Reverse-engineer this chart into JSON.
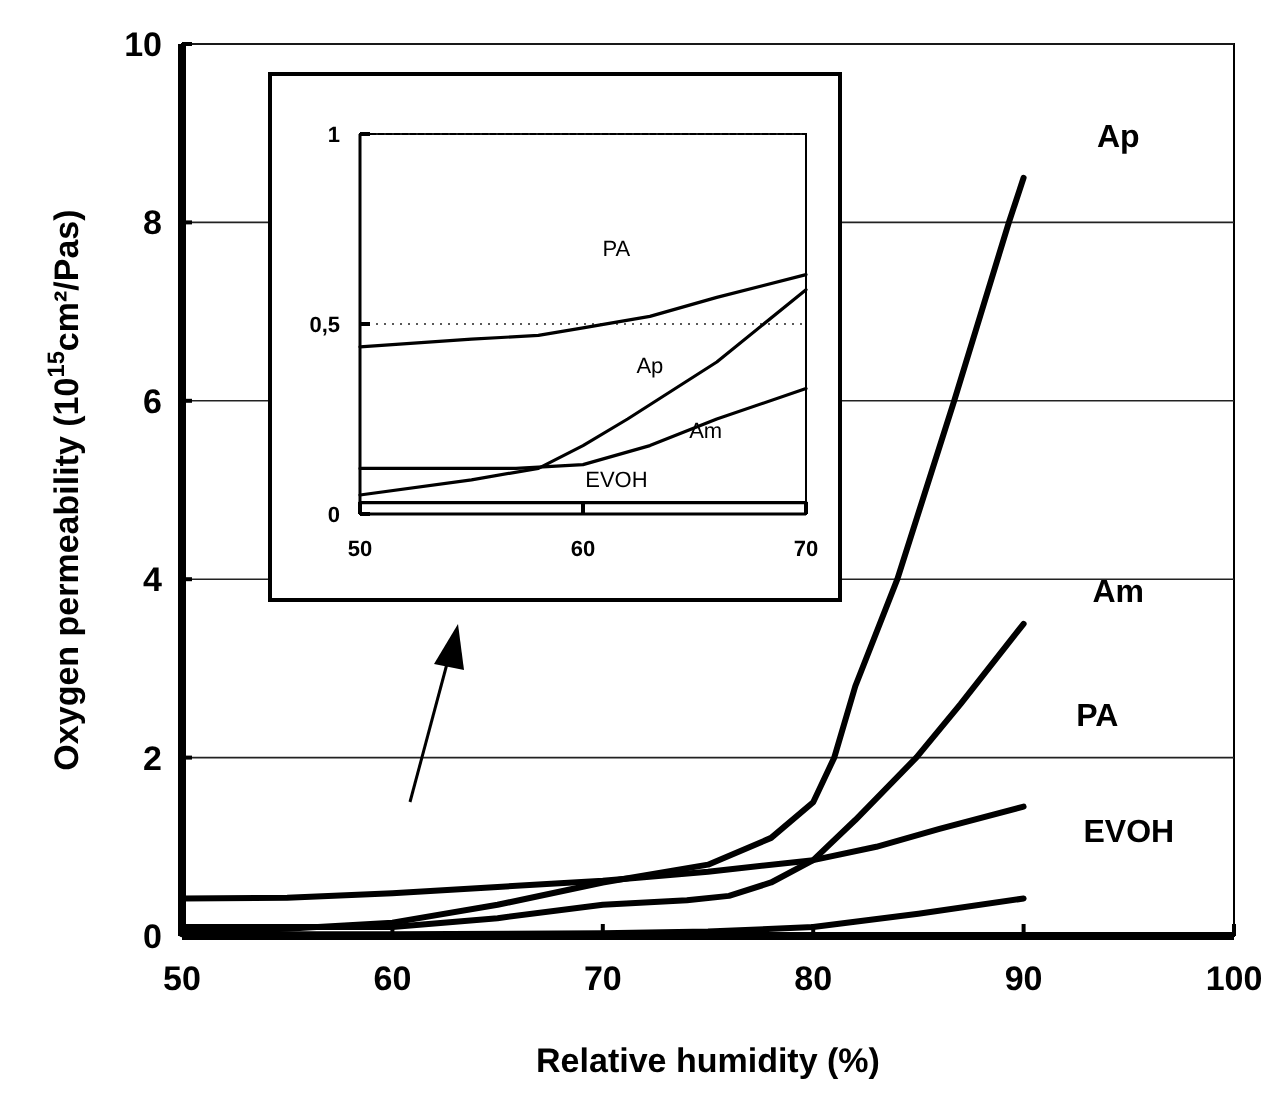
{
  "chart_data": [
    {
      "type": "line",
      "xlabel": "Relative humidity (%)",
      "ylabel": "Oxygen permeability (10$^{15}$cm²/Pas)",
      "xlim": [
        50,
        100
      ],
      "xticks": [
        50,
        60,
        70,
        80,
        90,
        100
      ],
      "ylim": [
        0,
        10
      ],
      "yticks": [
        0,
        2,
        4,
        6,
        8,
        10
      ],
      "grid": "y",
      "marker": "none",
      "line_style": "solid",
      "series": [
        {
          "name": "Ap",
          "color": "#000000",
          "x": [
            50,
            55,
            60,
            65,
            70,
            75,
            78,
            80,
            81,
            82,
            84,
            86.7,
            89.3,
            90
          ],
          "values": [
            0.05,
            0.08,
            0.15,
            0.35,
            0.6,
            0.8,
            1.1,
            1.5,
            2.0,
            2.8,
            4.0,
            6.0,
            8.0,
            8.5
          ]
        },
        {
          "name": "Am",
          "color": "#000000",
          "x": [
            50,
            55,
            60,
            65,
            70,
            74,
            76,
            78,
            80,
            82,
            84.9,
            87,
            90
          ],
          "values": [
            0.1,
            0.1,
            0.1,
            0.2,
            0.35,
            0.4,
            0.45,
            0.6,
            0.85,
            1.3,
            2.0,
            2.6,
            3.5
          ]
        },
        {
          "name": "PA",
          "color": "#000000",
          "x": [
            50,
            55,
            60,
            65,
            70,
            75,
            80,
            83,
            86,
            90
          ],
          "values": [
            0.42,
            0.43,
            0.48,
            0.55,
            0.62,
            0.72,
            0.85,
            1.0,
            1.2,
            1.45
          ]
        },
        {
          "name": "EVOH",
          "color": "#000000",
          "x": [
            50,
            60,
            70,
            75,
            80,
            85,
            90
          ],
          "values": [
            0.02,
            0.02,
            0.03,
            0.05,
            0.1,
            0.25,
            0.42
          ]
        }
      ]
    },
    {
      "type": "line",
      "xlim": [
        50,
        70
      ],
      "xticks": [
        50,
        60,
        70
      ],
      "ylim": [
        0,
        1
      ],
      "yticks": [
        0,
        {
          "value": 0.5,
          "label": "0,5"
        },
        1
      ],
      "grid": "y",
      "marker": "none",
      "line_style": "solid",
      "series": [
        {
          "name": "PA",
          "color": "#000000",
          "x": [
            50,
            55,
            58,
            60,
            63,
            66,
            70
          ],
          "values": [
            0.44,
            0.46,
            0.47,
            0.49,
            0.52,
            0.57,
            0.63
          ]
        },
        {
          "name": "Ap",
          "color": "#000000",
          "x": [
            50,
            55,
            58,
            60,
            62,
            66,
            70
          ],
          "values": [
            0.05,
            0.09,
            0.12,
            0.18,
            0.25,
            0.4,
            0.59
          ]
        },
        {
          "name": "Am",
          "color": "#000000",
          "x": [
            50,
            57,
            60,
            63,
            66,
            70
          ],
          "values": [
            0.12,
            0.12,
            0.13,
            0.18,
            0.25,
            0.33
          ]
        },
        {
          "name": "EVOH",
          "color": "#000000",
          "x": [
            50,
            60,
            70
          ],
          "values": [
            0.03,
            0.03,
            0.03
          ]
        }
      ]
    }
  ]
}
